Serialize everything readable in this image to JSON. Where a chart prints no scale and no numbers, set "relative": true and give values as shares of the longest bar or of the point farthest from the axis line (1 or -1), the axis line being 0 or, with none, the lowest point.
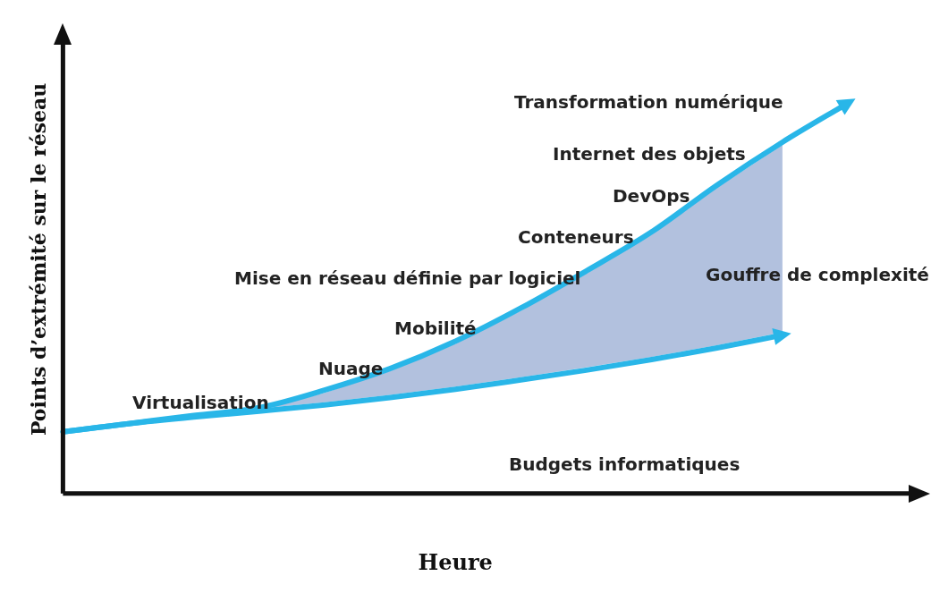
{
  "chart_data": {
    "type": "line",
    "relative": true,
    "xlabel": "Heure",
    "ylabel": "Points d’extrémité sur le réseau",
    "categories": [
      null,
      null,
      null,
      null,
      null,
      null,
      null,
      null,
      null,
      null,
      null,
      null,
      null
    ],
    "series": [
      {
        "color": "#29b6e8",
        "values": [
          0.158,
          0.179,
          0.2,
          0.22,
          0.265,
          0.32,
          0.39,
          0.475,
          0.57,
          0.67,
          0.79,
          0.9,
          1
        ]
      },
      {
        "color": "#29b6e8",
        "values": [
          0.158,
          0.179,
          0.196,
          0.211,
          0.227,
          0.246,
          0.267,
          0.291,
          0.316,
          0.343,
          0.373,
          0.406,
          null
        ]
      }
    ],
    "annotations": [
      "Transformation numérique",
      "Internet des objets",
      "DevOps",
      "Conteneurs",
      "Mise en réseau définie par logiciel",
      "Mobilité",
      "Nuage",
      "Virtualisation",
      "Gouffre de complexité",
      "Budgets informatiques"
    ],
    "grid": false,
    "legend": false,
    "marker": "none",
    "line_style": "solid"
  }
}
